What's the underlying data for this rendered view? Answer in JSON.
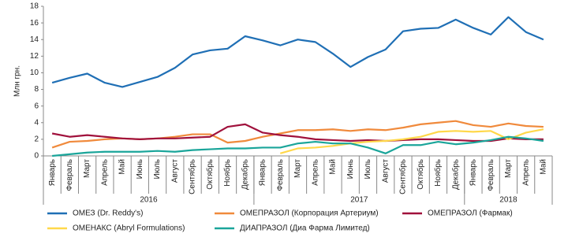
{
  "chart_data": {
    "type": "line",
    "y_label": "Млн грн.",
    "categories": [
      "Январь",
      "Февраль",
      "Март",
      "Апрель",
      "Май",
      "Июнь",
      "Июль",
      "Август",
      "Сентябрь",
      "Октябрь",
      "Ноябрь",
      "Декабрь",
      "Январь",
      "Февраль",
      "Март",
      "Апрель",
      "Май",
      "Июнь",
      "Июль",
      "Август",
      "Сентябрь",
      "Октябрь",
      "Ноябрь",
      "Декабрь",
      "Январь",
      "Февраль",
      "Март",
      "Апрель",
      "Май"
    ],
    "groups": [
      {
        "name": "2016",
        "count": 12
      },
      {
        "name": "2017",
        "count": 12
      },
      {
        "name": "2018",
        "count": 5
      }
    ],
    "ylim": [
      0,
      18
    ],
    "yticks": [
      0,
      2,
      4,
      6,
      8,
      10,
      12,
      14,
      16,
      18
    ],
    "series": [
      {
        "name": "ОМЕЗ (Dr. Reddy's)",
        "color": "#1f6fb5",
        "values": [
          8.8,
          9.4,
          9.9,
          8.8,
          8.3,
          8.9,
          9.5,
          10.6,
          12.2,
          12.7,
          12.9,
          14.4,
          13.9,
          13.3,
          14.0,
          13.7,
          12.3,
          10.7,
          11.9,
          12.8,
          15.0,
          15.3,
          15.4,
          16.4,
          15.4,
          14.6,
          16.7,
          14.9,
          14.0
        ]
      },
      {
        "name": "ОМЕПРАЗОЛ (Корпорация Артериум)",
        "color": "#f08a3c",
        "values": [
          1.0,
          1.7,
          1.8,
          2.0,
          2.1,
          2.0,
          2.1,
          2.3,
          2.6,
          2.6,
          1.6,
          1.8,
          2.3,
          2.7,
          3.1,
          3.1,
          3.2,
          3.0,
          3.2,
          3.1,
          3.4,
          3.8,
          4.0,
          4.2,
          3.7,
          3.5,
          3.9,
          3.6,
          3.5
        ]
      },
      {
        "name": "ОМЕПРАЗОЛ (Фармак)",
        "color": "#a0113c",
        "values": [
          2.7,
          2.3,
          2.5,
          2.3,
          2.1,
          2.0,
          2.1,
          2.1,
          2.2,
          2.3,
          3.5,
          3.8,
          2.8,
          2.5,
          2.3,
          2.0,
          1.9,
          1.8,
          1.9,
          1.8,
          1.9,
          2.0,
          2.0,
          1.9,
          1.8,
          1.8,
          2.1,
          2.0,
          2.0
        ]
      },
      {
        "name": "ОМЕНАКС (Abryl Formulations)",
        "color": "#ffd84a",
        "values": [
          null,
          null,
          null,
          null,
          null,
          null,
          null,
          null,
          null,
          null,
          null,
          null,
          null,
          0.3,
          0.9,
          1.0,
          1.2,
          1.5,
          1.7,
          1.8,
          2.0,
          2.3,
          2.9,
          3.0,
          2.9,
          3.0,
          2.0,
          2.8,
          3.2
        ]
      },
      {
        "name": "ДИАПРАЗОЛ (Диа Фарма Лимитед)",
        "color": "#1aa59a",
        "values": [
          0,
          0.2,
          0.4,
          0.5,
          0.5,
          0.5,
          0.6,
          0.5,
          0.7,
          0.8,
          0.9,
          0.9,
          1.0,
          1.0,
          1.5,
          1.7,
          1.5,
          1.5,
          1.0,
          0.3,
          1.3,
          1.3,
          1.7,
          1.4,
          1.6,
          1.9,
          2.3,
          2.1,
          1.8
        ]
      }
    ]
  }
}
